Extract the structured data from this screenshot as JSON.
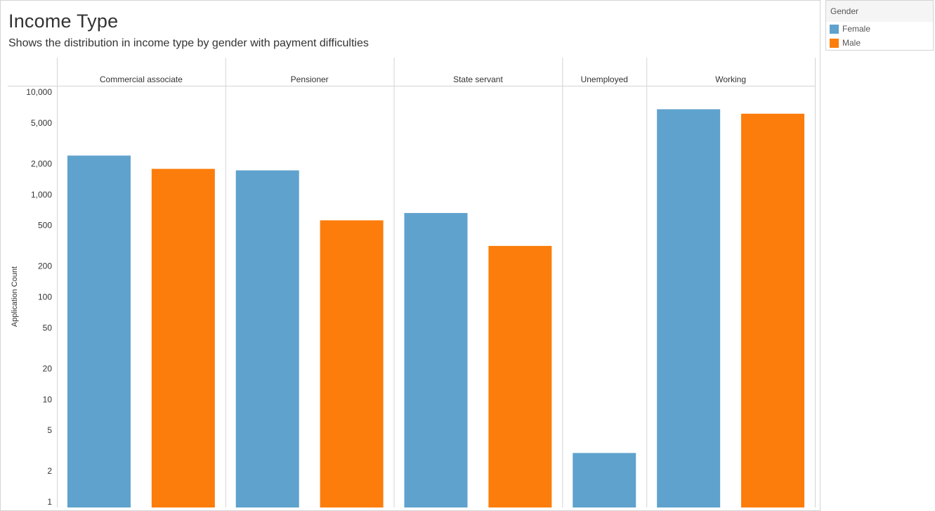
{
  "header": {
    "title": "Income Type",
    "subtitle": "Shows the distribution in income type by gender with payment difficulties"
  },
  "legend": {
    "title": "Gender",
    "items": [
      {
        "label": "Female",
        "color": "#5fa2cd"
      },
      {
        "label": "Male",
        "color": "#fc7d0b"
      }
    ]
  },
  "chart_data": {
    "type": "bar",
    "categories": [
      "Commercial associate",
      "Pensioner",
      "State servant",
      "Unemployed",
      "Working"
    ],
    "series": [
      {
        "name": "Female",
        "color": "#5fa2cd",
        "values": [
          2400,
          1720,
          660,
          3,
          6800
        ]
      },
      {
        "name": "Male",
        "color": "#fc7d0b",
        "values": [
          1780,
          560,
          315,
          null,
          6150
        ]
      }
    ],
    "ylabel": "Application Count",
    "y_scale": "log",
    "ylim": [
      1,
      10000
    ],
    "y_ticks": [
      1,
      2,
      5,
      10,
      20,
      50,
      100,
      200,
      500,
      1000,
      2000,
      5000,
      10000
    ],
    "y_tick_labels": [
      "1",
      "2",
      "5",
      "10",
      "20",
      "50",
      "100",
      "200",
      "500",
      "1,000",
      "2,000",
      "5,000",
      "10,000"
    ],
    "legend_position": "top-right"
  }
}
